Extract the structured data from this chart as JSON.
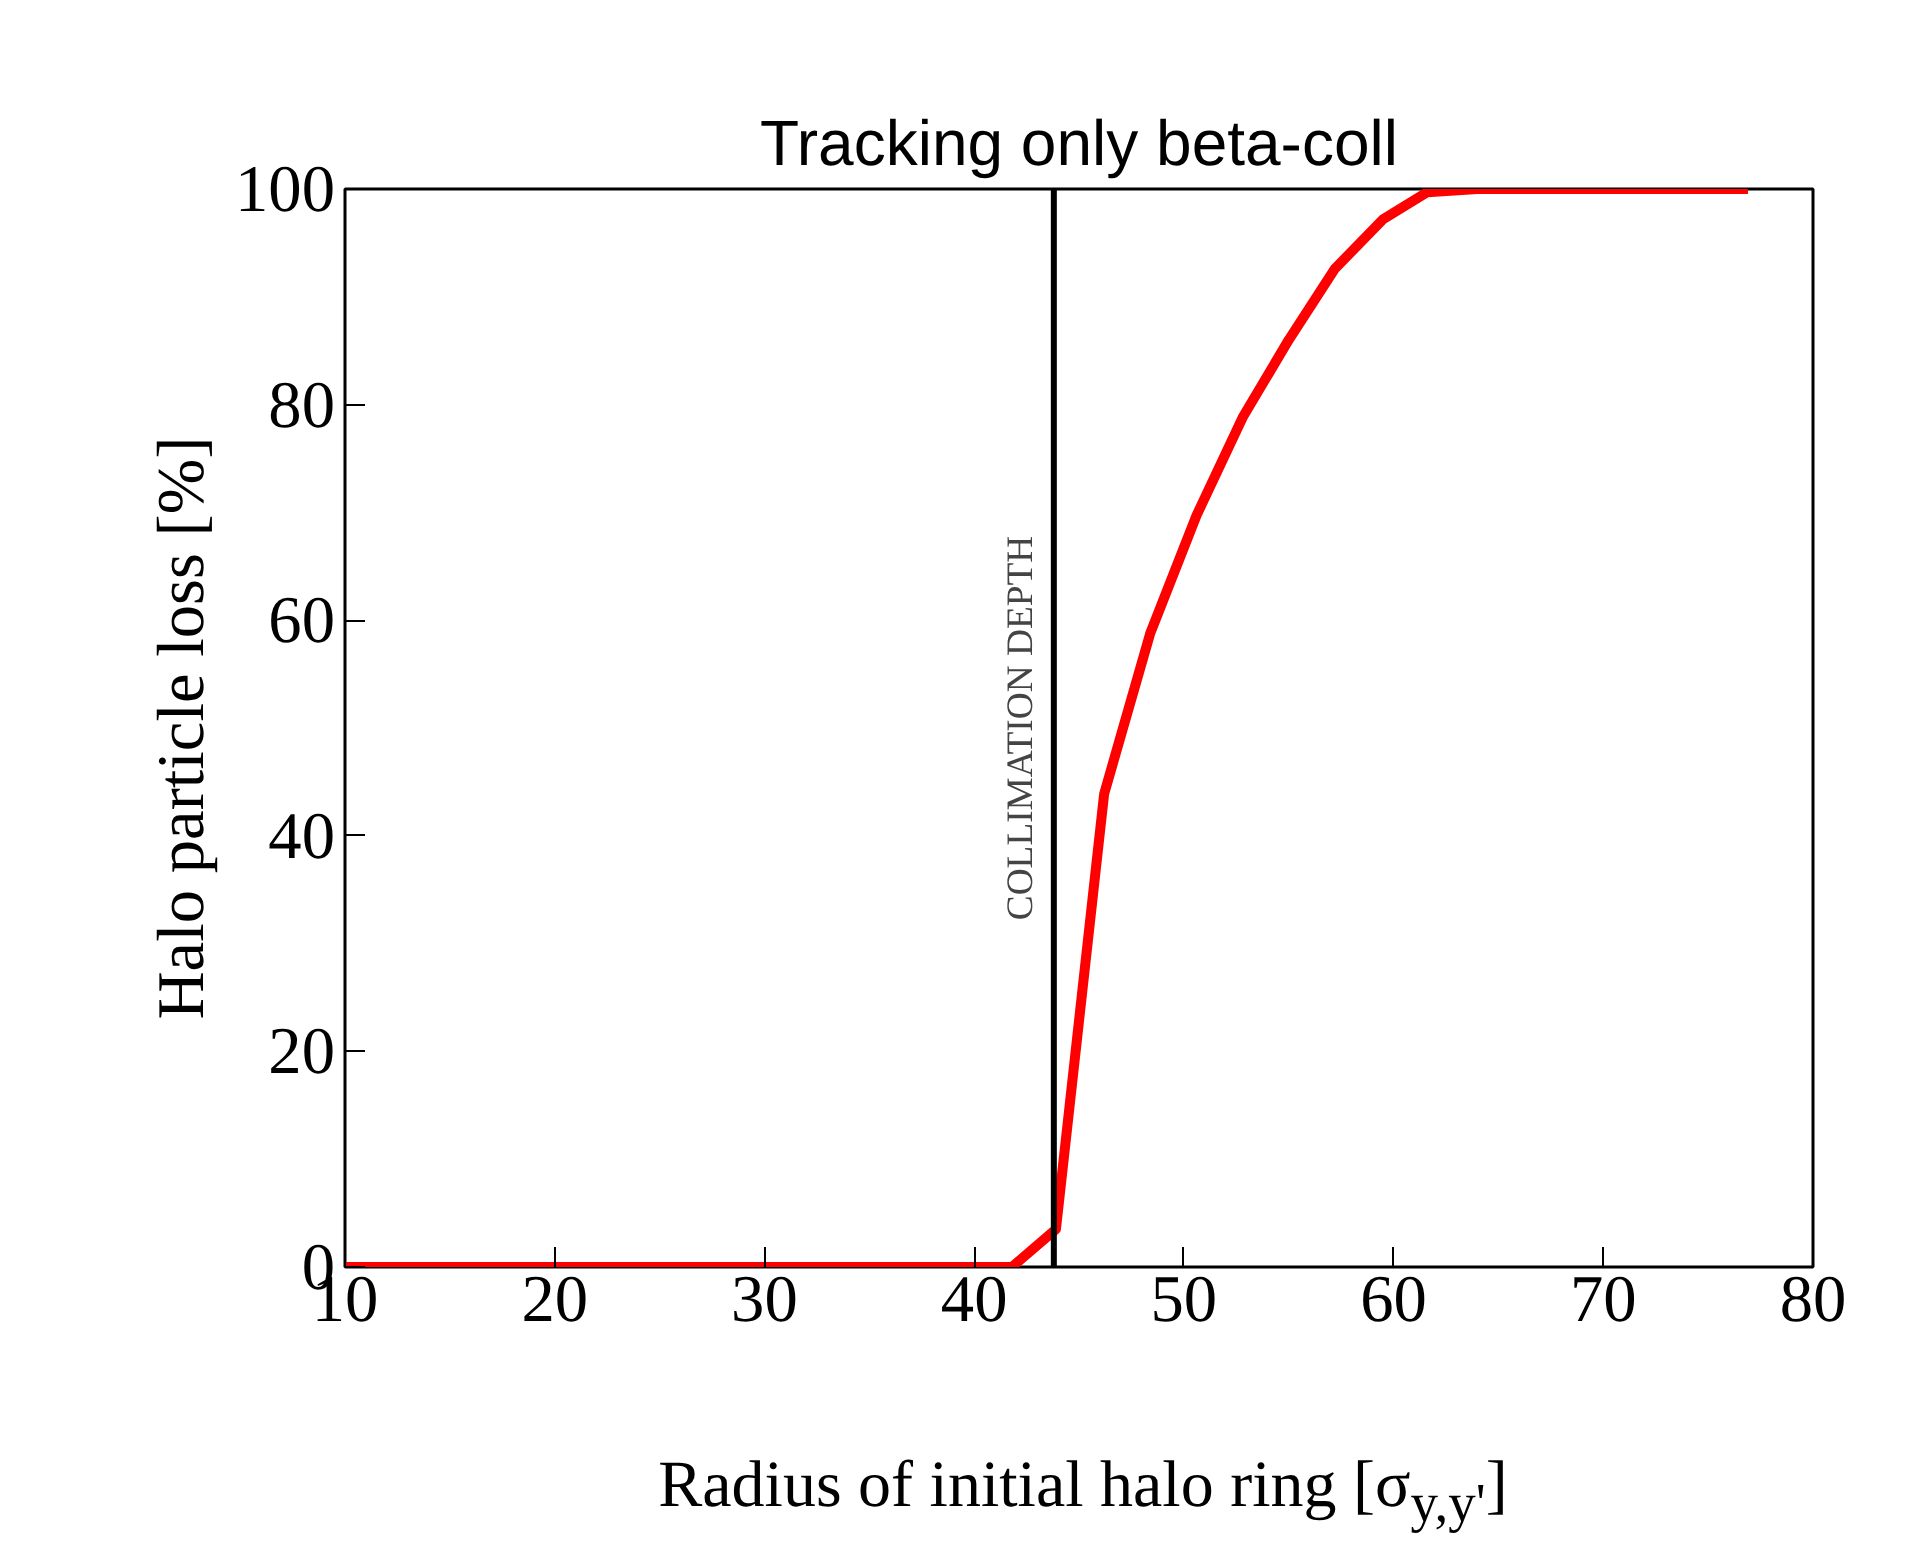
{
  "chart_data": {
    "type": "line",
    "title": "Tracking only beta-coll",
    "xlabel": "Radius of initial halo ring [σ$_{y,y'}$]",
    "ylabel": "Halo particle loss [%]",
    "x": [
      10,
      41.8,
      43.9,
      46.2,
      48.4,
      50.6,
      52.8,
      55.0,
      57.2,
      59.5,
      61.6,
      64.0,
      76.9
    ],
    "series": [
      {
        "color": "#ff0000",
        "values": [
          0,
          0,
          3.5,
          43.9,
          58.8,
          69.7,
          78.8,
          86.0,
          92.6,
          97.2,
          99.7,
          100,
          100
        ]
      }
    ],
    "xlim": [
      10,
      80
    ],
    "xticks": [
      10,
      20,
      30,
      40,
      50,
      60,
      70,
      80
    ],
    "ylim": [
      0,
      100
    ],
    "yticks": [
      0,
      20,
      40,
      60,
      80,
      100
    ],
    "ref_lines": [
      {
        "axis": "x",
        "value": 43.8,
        "label": "COLLIMATION DEPTH",
        "color": "#000000"
      }
    ],
    "grid": false,
    "marker": "none",
    "line_style": "solid"
  }
}
